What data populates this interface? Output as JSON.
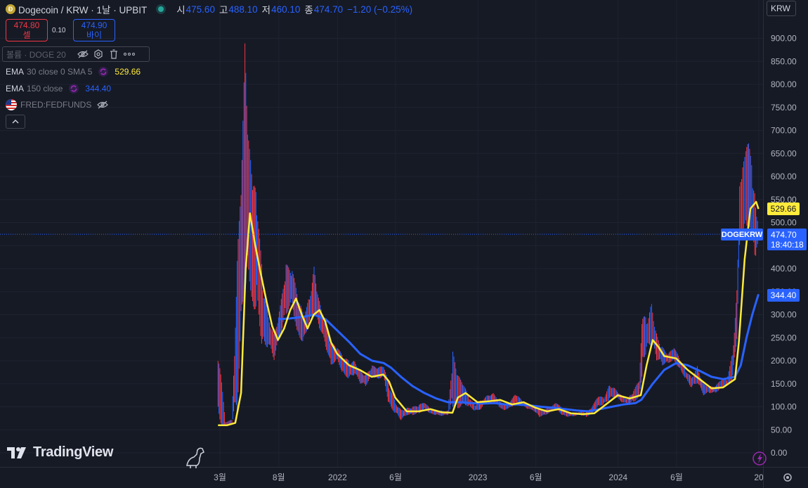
{
  "header": {
    "symbol": "Dogecoin / KRW · 1날 · UPBIT",
    "open_label": "시",
    "open": "475.60",
    "high_label": "고",
    "high": "488.10",
    "low_label": "저",
    "low": "460.10",
    "close_label": "종",
    "close": "474.70",
    "change": "−1.20 (−0.25%)"
  },
  "trade": {
    "sell_price": "474.80",
    "sell_label": "셀",
    "spread": "0.10",
    "buy_price": "474.90",
    "buy_label": "바이"
  },
  "indicators": {
    "volume": "볼륨 · DOGE 20",
    "ema30_name": "EMA",
    "ema30_params": "30 close 0 SMA 5",
    "ema30_value": "529.66",
    "ema150_name": "EMA",
    "ema150_params": "150 close",
    "ema150_value": "344.40",
    "fred": "FRED:FEDFUNDS"
  },
  "currency": "KRW",
  "price_labels": {
    "symbol_tag": "DOGEKRW",
    "last": "474.70",
    "countdown": "18:40:18",
    "ema30": "529.66",
    "ema150": "344.40"
  },
  "logo": "TradingView",
  "colors": {
    "background": "#161a25",
    "up": "#2962ff",
    "down": "#f23645",
    "ema30": "#ffeb3b",
    "ema150": "#2962ff"
  },
  "chart_data": {
    "type": "line",
    "title": "Dogecoin / KRW · 1날 · UPBIT",
    "y_axis": {
      "ticks": [
        0,
        50,
        100,
        150,
        200,
        250,
        300,
        350,
        400,
        450,
        500,
        550,
        600,
        650,
        700,
        750,
        800,
        850,
        900
      ],
      "tick_labels": [
        "0.00",
        "50.00",
        "100.00",
        "150.00",
        "200.00",
        "250.00",
        "300.00",
        "350.00",
        "400.00",
        "450.00",
        "500.00",
        "550.00",
        "600.00",
        "650.00",
        "700.00",
        "750.00",
        "800.00",
        "850.00",
        "900.00"
      ],
      "ylim": [
        0,
        900
      ]
    },
    "x_axis": {
      "tick_labels": [
        "3월",
        "8월",
        "2022",
        "6월",
        "2023",
        "6월",
        "2024",
        "6월",
        "20"
      ],
      "tick_dates": [
        "2021-03",
        "2021-08",
        "2022-01",
        "2022-06",
        "2023-01",
        "2023-06",
        "2024-01",
        "2024-06",
        "2025-01"
      ]
    },
    "price_high_low": [
      [
        "2021-02-24",
        60,
        240
      ],
      [
        "2021-03-15",
        58,
        68
      ],
      [
        "2021-04-01",
        62,
        72
      ],
      [
        "2021-04-15",
        85,
        420
      ],
      [
        "2021-05-05",
        340,
        890
      ],
      [
        "2021-05-12",
        420,
        700
      ],
      [
        "2021-05-25",
        300,
        600
      ],
      [
        "2021-06-05",
        320,
        560
      ],
      [
        "2021-06-20",
        220,
        380
      ],
      [
        "2021-07-05",
        230,
        300
      ],
      [
        "2021-07-20",
        200,
        260
      ],
      [
        "2021-08-05",
        250,
        320
      ],
      [
        "2021-08-20",
        300,
        410
      ],
      [
        "2021-09-05",
        320,
        400
      ],
      [
        "2021-09-20",
        250,
        340
      ],
      [
        "2021-10-05",
        240,
        300
      ],
      [
        "2021-10-20",
        280,
        340
      ],
      [
        "2021-11-01",
        290,
        410
      ],
      [
        "2021-11-15",
        270,
        330
      ],
      [
        "2021-12-01",
        230,
        280
      ],
      [
        "2021-12-15",
        190,
        240
      ],
      [
        "2022-01-01",
        200,
        230
      ],
      [
        "2022-01-15",
        170,
        210
      ],
      [
        "2022-02-01",
        160,
        200
      ],
      [
        "2022-02-15",
        170,
        200
      ],
      [
        "2022-03-01",
        150,
        180
      ],
      [
        "2022-03-15",
        145,
        170
      ],
      [
        "2022-04-01",
        165,
        190
      ],
      [
        "2022-04-15",
        160,
        185
      ],
      [
        "2022-05-01",
        165,
        190
      ],
      [
        "2022-05-15",
        100,
        150
      ],
      [
        "2022-06-01",
        85,
        110
      ],
      [
        "2022-06-15",
        70,
        95
      ],
      [
        "2022-07-01",
        82,
        98
      ],
      [
        "2022-07-15",
        82,
        100
      ],
      [
        "2022-08-01",
        85,
        105
      ],
      [
        "2022-08-15",
        95,
        110
      ],
      [
        "2022-09-01",
        84,
        95
      ],
      [
        "2022-09-15",
        82,
        92
      ],
      [
        "2022-10-01",
        80,
        92
      ],
      [
        "2022-10-15",
        82,
        92
      ],
      [
        "2022-10-28",
        100,
        220
      ],
      [
        "2022-11-10",
        95,
        170
      ],
      [
        "2022-11-25",
        105,
        150
      ],
      [
        "2022-12-10",
        100,
        120
      ],
      [
        "2022-12-25",
        90,
        105
      ],
      [
        "2023-01-10",
        95,
        115
      ],
      [
        "2023-01-25",
        110,
        125
      ],
      [
        "2023-02-10",
        110,
        130
      ],
      [
        "2023-02-25",
        100,
        115
      ],
      [
        "2023-03-10",
        92,
        105
      ],
      [
        "2023-03-25",
        98,
        110
      ],
      [
        "2023-04-10",
        105,
        130
      ],
      [
        "2023-04-25",
        105,
        115
      ],
      [
        "2023-05-10",
        95,
        105
      ],
      [
        "2023-05-25",
        92,
        100
      ],
      [
        "2023-06-10",
        78,
        95
      ],
      [
        "2023-06-25",
        82,
        95
      ],
      [
        "2023-07-10",
        88,
        100
      ],
      [
        "2023-07-25",
        95,
        110
      ],
      [
        "2023-08-10",
        80,
        95
      ],
      [
        "2023-08-25",
        78,
        88
      ],
      [
        "2023-09-10",
        80,
        88
      ],
      [
        "2023-09-25",
        82,
        90
      ],
      [
        "2023-10-10",
        78,
        88
      ],
      [
        "2023-10-25",
        85,
        100
      ],
      [
        "2023-11-10",
        100,
        125
      ],
      [
        "2023-11-25",
        105,
        120
      ],
      [
        "2023-12-10",
        115,
        150
      ],
      [
        "2023-12-25",
        120,
        140
      ],
      [
        "2024-01-10",
        110,
        125
      ],
      [
        "2024-01-25",
        105,
        118
      ],
      [
        "2024-02-10",
        110,
        135
      ],
      [
        "2024-02-25",
        120,
        160
      ],
      [
        "2024-03-05",
        180,
        320
      ],
      [
        "2024-03-15",
        220,
        290
      ],
      [
        "2024-03-28",
        230,
        330
      ],
      [
        "2024-04-10",
        200,
        260
      ],
      [
        "2024-04-25",
        190,
        230
      ],
      [
        "2024-05-10",
        195,
        215
      ],
      [
        "2024-05-25",
        200,
        230
      ],
      [
        "2024-06-10",
        180,
        205
      ],
      [
        "2024-06-25",
        160,
        180
      ],
      [
        "2024-07-10",
        140,
        165
      ],
      [
        "2024-07-25",
        150,
        190
      ],
      [
        "2024-08-10",
        125,
        150
      ],
      [
        "2024-08-25",
        130,
        145
      ],
      [
        "2024-09-10",
        130,
        145
      ],
      [
        "2024-09-25",
        140,
        160
      ],
      [
        "2024-10-10",
        145,
        160
      ],
      [
        "2024-10-25",
        160,
        220
      ],
      [
        "2024-11-05",
        240,
        360
      ],
      [
        "2024-11-12",
        450,
        580
      ],
      [
        "2024-11-20",
        480,
        620
      ],
      [
        "2024-11-28",
        500,
        660
      ],
      [
        "2024-12-08",
        470,
        680
      ],
      [
        "2024-12-16",
        460,
        600
      ],
      [
        "2024-12-24",
        400,
        560
      ],
      [
        "2024-12-31",
        465,
        490
      ]
    ],
    "series": [
      {
        "name": "EMA 30",
        "color": "#ffeb3b",
        "points": [
          [
            "2021-02-24",
            60
          ],
          [
            "2021-03-20",
            60
          ],
          [
            "2021-04-10",
            65
          ],
          [
            "2021-04-25",
            130
          ],
          [
            "2021-05-07",
            400
          ],
          [
            "2021-05-18",
            520
          ],
          [
            "2021-06-01",
            450
          ],
          [
            "2021-06-15",
            390
          ],
          [
            "2021-06-30",
            330
          ],
          [
            "2021-07-15",
            275
          ],
          [
            "2021-07-30",
            245
          ],
          [
            "2021-08-15",
            270
          ],
          [
            "2021-08-31",
            310
          ],
          [
            "2021-09-15",
            335
          ],
          [
            "2021-09-30",
            300
          ],
          [
            "2021-10-15",
            270
          ],
          [
            "2021-10-31",
            300
          ],
          [
            "2021-11-15",
            310
          ],
          [
            "2021-11-30",
            285
          ],
          [
            "2021-12-15",
            240
          ],
          [
            "2021-12-31",
            215
          ],
          [
            "2022-01-31",
            190
          ],
          [
            "2022-02-28",
            180
          ],
          [
            "2022-03-31",
            165
          ],
          [
            "2022-04-30",
            170
          ],
          [
            "2022-05-15",
            155
          ],
          [
            "2022-05-31",
            120
          ],
          [
            "2022-06-30",
            90
          ],
          [
            "2022-07-31",
            90
          ],
          [
            "2022-08-31",
            95
          ],
          [
            "2022-09-30",
            88
          ],
          [
            "2022-10-27",
            87
          ],
          [
            "2022-11-10",
            120
          ],
          [
            "2022-11-30",
            130
          ],
          [
            "2022-12-31",
            110
          ],
          [
            "2023-01-31",
            112
          ],
          [
            "2023-02-28",
            115
          ],
          [
            "2023-03-31",
            105
          ],
          [
            "2023-04-30",
            110
          ],
          [
            "2023-05-31",
            98
          ],
          [
            "2023-06-30",
            90
          ],
          [
            "2023-07-31",
            95
          ],
          [
            "2023-08-31",
            86
          ],
          [
            "2023-09-30",
            84
          ],
          [
            "2023-10-31",
            86
          ],
          [
            "2023-11-30",
            105
          ],
          [
            "2023-12-31",
            125
          ],
          [
            "2024-01-31",
            118
          ],
          [
            "2024-02-29",
            125
          ],
          [
            "2024-03-15",
            190
          ],
          [
            "2024-03-31",
            245
          ],
          [
            "2024-04-15",
            230
          ],
          [
            "2024-04-30",
            210
          ],
          [
            "2024-05-31",
            205
          ],
          [
            "2024-06-30",
            180
          ],
          [
            "2024-07-31",
            160
          ],
          [
            "2024-08-31",
            140
          ],
          [
            "2024-09-30",
            142
          ],
          [
            "2024-10-31",
            160
          ],
          [
            "2024-11-10",
            240
          ],
          [
            "2024-11-25",
            420
          ],
          [
            "2024-12-10",
            530
          ],
          [
            "2024-12-25",
            545
          ],
          [
            "2024-12-31",
            529.66
          ]
        ]
      },
      {
        "name": "EMA 150",
        "color": "#2962ff",
        "points": [
          [
            "2021-08-01",
            290
          ],
          [
            "2021-09-01",
            292
          ],
          [
            "2021-10-01",
            295
          ],
          [
            "2021-11-01",
            300
          ],
          [
            "2021-12-01",
            290
          ],
          [
            "2022-01-01",
            265
          ],
          [
            "2022-02-01",
            240
          ],
          [
            "2022-03-01",
            215
          ],
          [
            "2022-04-01",
            200
          ],
          [
            "2022-05-01",
            195
          ],
          [
            "2022-05-20",
            185
          ],
          [
            "2022-06-15",
            165
          ],
          [
            "2022-07-15",
            145
          ],
          [
            "2022-08-15",
            130
          ],
          [
            "2022-09-15",
            118
          ],
          [
            "2022-10-15",
            110
          ],
          [
            "2022-11-15",
            110
          ],
          [
            "2022-12-15",
            108
          ],
          [
            "2023-01-15",
            107
          ],
          [
            "2023-02-15",
            108
          ],
          [
            "2023-03-15",
            105
          ],
          [
            "2023-04-15",
            105
          ],
          [
            "2023-05-15",
            103
          ],
          [
            "2023-06-15",
            100
          ],
          [
            "2023-07-15",
            98
          ],
          [
            "2023-08-15",
            95
          ],
          [
            "2023-09-15",
            92
          ],
          [
            "2023-10-15",
            90
          ],
          [
            "2023-11-15",
            95
          ],
          [
            "2023-12-15",
            100
          ],
          [
            "2024-01-15",
            105
          ],
          [
            "2024-02-15",
            108
          ],
          [
            "2024-03-01",
            115
          ],
          [
            "2024-03-31",
            150
          ],
          [
            "2024-04-30",
            180
          ],
          [
            "2024-05-31",
            195
          ],
          [
            "2024-06-30",
            190
          ],
          [
            "2024-07-31",
            178
          ],
          [
            "2024-08-31",
            165
          ],
          [
            "2024-09-30",
            160
          ],
          [
            "2024-10-31",
            165
          ],
          [
            "2024-11-15",
            190
          ],
          [
            "2024-11-30",
            250
          ],
          [
            "2024-12-15",
            300
          ],
          [
            "2024-12-31",
            344.4
          ]
        ]
      }
    ],
    "last_price": 474.7,
    "grid": true,
    "legend": "top-left"
  }
}
